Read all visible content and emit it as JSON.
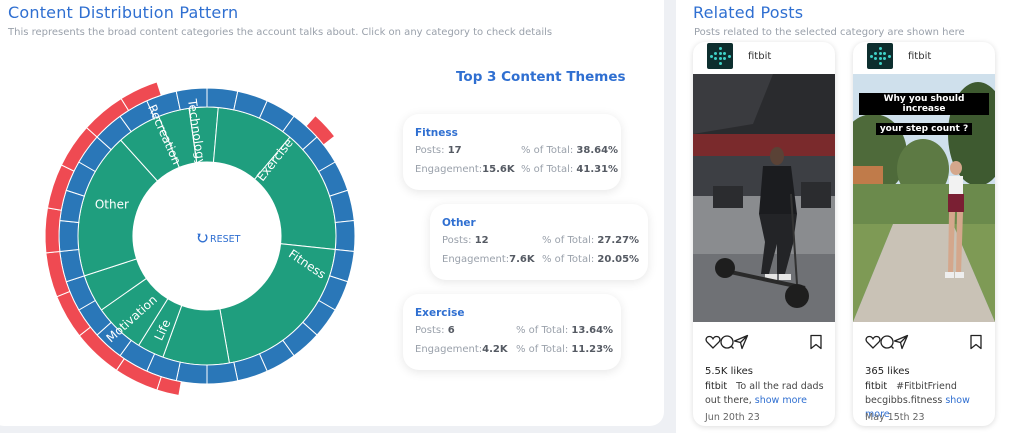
{
  "distribution": {
    "title": "Content Distribution Pattern",
    "subtitle": "This represents the broad content categories the account talks about. Click on any category to check details",
    "reset_label": "RESET",
    "colors": {
      "inner": "#1f9e7e",
      "middle": "#2a77b8",
      "outer": "#ef4a52",
      "stroke": "#ffffff"
    },
    "labels": {
      "technology": "Technology",
      "exercise": "Exercise",
      "fitness": "Fitness",
      "life": "Life",
      "motivation": "Motivation",
      "other": "Other",
      "recreation": "Recreation"
    }
  },
  "themes": {
    "title": "Top 3 Content Themes",
    "cards": [
      {
        "name": "Fitness",
        "posts_label": "Posts:",
        "posts": "17",
        "posts_pct_label": "% of Total:",
        "posts_pct": "38.64%",
        "eng_label": "Engagement:",
        "eng": "15.6K",
        "eng_pct_label": "% of Total:",
        "eng_pct": "41.31%"
      },
      {
        "name": "Other",
        "posts_label": "Posts:",
        "posts": "12",
        "posts_pct_label": "% of Total:",
        "posts_pct": "27.27%",
        "eng_label": "Engagement:",
        "eng": "7.6K",
        "eng_pct_label": "% of Total:",
        "eng_pct": "20.05%"
      },
      {
        "name": "Exercise",
        "posts_label": "Posts:",
        "posts": "6",
        "posts_pct_label": "% of Total:",
        "posts_pct": "13.64%",
        "eng_label": "Engagement:",
        "eng": "4.2K",
        "eng_pct_label": "% of Total:",
        "eng_pct": "11.23%"
      }
    ]
  },
  "related": {
    "title": "Related Posts",
    "subtitle": "Posts related to the selected category are shown here",
    "posts": [
      {
        "user": "fitbit",
        "likes": "5.5K likes",
        "caption_user": "fitbit",
        "caption": "To all the rad dads out there,",
        "more": "show more",
        "date": "Jun 20th 23",
        "overlay": []
      },
      {
        "user": "fitbit",
        "likes": "365 likes",
        "caption_user": "fitbit",
        "caption": "#FitbitFriend becgibbs.fitness",
        "more": "show more",
        "date": "May 15th 23",
        "overlay": [
          "Why you should increase",
          "your step count ?"
        ]
      }
    ]
  },
  "icons": [
    "heart-icon",
    "comment-icon",
    "share-icon",
    "bookmark-icon",
    "reset-icon",
    "fitbit-logo"
  ]
}
